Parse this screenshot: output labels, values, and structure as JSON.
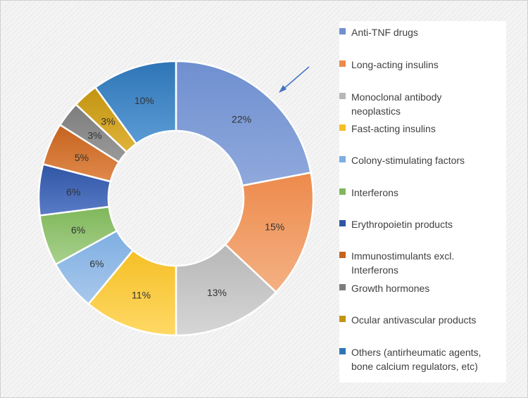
{
  "chart_data": {
    "type": "donut",
    "categories": [
      "Anti-TNF drugs",
      "Long-acting insulins",
      "Monoclonal antibody neoplastics",
      "Fast-acting insulins",
      "Colony-stimulating factors",
      "Interferons",
      "Erythropoietin products",
      "Immunostimulants excl. Interferons",
      "Growth hormones",
      "Ocular antivascular products",
      "Others (antirheumatic agents, bone calcium regulators, etc)"
    ],
    "legend_lines": [
      [
        "Anti-TNF drugs"
      ],
      [
        "Long-acting insulins"
      ],
      [
        "Monoclonal antibody",
        "neoplastics"
      ],
      [
        "Fast-acting insulins"
      ],
      [
        "Colony-stimulating factors"
      ],
      [
        "Interferons"
      ],
      [
        "Erythropoietin products"
      ],
      [
        "Immunostimulants excl.",
        "Interferons"
      ],
      [
        "Growth hormones"
      ],
      [
        "Ocular antivascular products"
      ],
      [
        "Others (antirheumatic agents,",
        "bone calcium regulators, etc)"
      ]
    ],
    "values": [
      22,
      15,
      13,
      11,
      6,
      6,
      6,
      5,
      3,
      3,
      10
    ],
    "data_labels": [
      "22%",
      "15%",
      "13%",
      "11%",
      "6%",
      "6%",
      "6%",
      "5%",
      "3%",
      "3%",
      "10%"
    ],
    "colors": [
      [
        "#8fa9dc",
        "#6f8fd0"
      ],
      [
        "#f4b183",
        "#ed8a4c"
      ],
      [
        "#d6d6d6",
        "#b7b7b7"
      ],
      [
        "#ffd966",
        "#f5bf26"
      ],
      [
        "#a9c8ec",
        "#7eaee2"
      ],
      [
        "#a9d18e",
        "#7fb75a"
      ],
      [
        "#5b7cc7",
        "#2f55a4"
      ],
      [
        "#e0894b",
        "#c5631f"
      ],
      [
        "#9a9a9a",
        "#7d7d7d"
      ],
      [
        "#e0b33a",
        "#c29410"
      ],
      [
        "#5b9bd5",
        "#2e75b6"
      ]
    ],
    "legend_position": "right",
    "annotation": "arrow pointing to Anti-TNF drugs slice"
  }
}
